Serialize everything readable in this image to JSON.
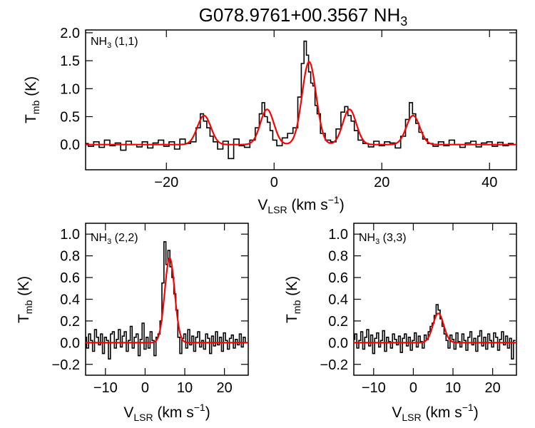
{
  "figure_title": {
    "main": "G078.9761+00.3567 NH",
    "sub": "3"
  },
  "colors": {
    "observed": "#000000",
    "fit": "#ff0000",
    "axes": "#000000"
  },
  "chart_data": [
    {
      "id": "nh3-11",
      "type": "line",
      "label": {
        "main": "NH",
        "sub": "3",
        "rest": " (1,1)"
      },
      "xlabel": {
        "main": "V",
        "sub": "LSR",
        "rest": " (km s",
        "sup": "−1",
        "end": ")"
      },
      "ylabel": {
        "main": "T",
        "sub": "mb",
        "rest": " (K)"
      },
      "xlim": [
        -35,
        45
      ],
      "ylim": [
        -0.45,
        2.05
      ],
      "xticks": [
        -20,
        0,
        20,
        40
      ],
      "xtick_labels": [
        "−20",
        "0",
        "20",
        "40"
      ],
      "yticks": [
        0.0,
        0.5,
        1.0,
        1.5,
        2.0
      ],
      "ytick_labels": [
        "0.0",
        "0.5",
        "1.0",
        "1.5",
        "2.0"
      ],
      "series": [
        {
          "role": "observed",
          "style": "steps",
          "x": [
            -35.0,
            -34.0,
            -33.0,
            -32.0,
            -31.0,
            -30.0,
            -29.0,
            -28.0,
            -27.0,
            -26.0,
            -25.0,
            -24.0,
            -23.0,
            -22.0,
            -21.0,
            -20.0,
            -19.0,
            -18.0,
            -17.0,
            -16.0,
            -15.0,
            -14.0,
            -13.4,
            -12.8,
            -12.2,
            -11.6,
            -11.0,
            -10.0,
            -9.0,
            -8.0,
            -7.0,
            -6.0,
            -5.0,
            -4.0,
            -3.0,
            -2.5,
            -2.0,
            -1.5,
            -1.0,
            -0.5,
            0.0,
            1.0,
            2.0,
            3.0,
            4.0,
            4.8,
            5.3,
            5.8,
            6.2,
            6.6,
            7.0,
            7.4,
            7.8,
            8.2,
            9.0,
            10.0,
            11.0,
            12.0,
            12.8,
            13.4,
            14.0,
            14.6,
            15.2,
            16.0,
            17.0,
            18.0,
            19.0,
            20.0,
            21.0,
            22.0,
            23.0,
            24.0,
            24.8,
            25.4,
            26.0,
            26.6,
            27.2,
            28.0,
            29.0,
            30.0,
            31.0,
            32.0,
            33.0,
            34.0,
            35.0,
            36.0,
            37.0,
            38.0,
            39.0,
            40.0,
            41.0,
            42.0,
            43.0,
            44.0
          ],
          "y": [
            0.02,
            -0.03,
            0.05,
            -0.05,
            0.08,
            -0.02,
            0.03,
            -0.1,
            0.06,
            0.0,
            -0.04,
            0.05,
            -0.06,
            0.03,
            0.08,
            -0.03,
            0.05,
            -0.08,
            0.1,
            0.02,
            0.05,
            0.3,
            0.55,
            0.42,
            0.3,
            0.15,
            0.05,
            -0.08,
            0.06,
            -0.25,
            0.1,
            -0.02,
            -0.05,
            0.08,
            0.3,
            0.55,
            0.75,
            0.5,
            0.4,
            0.25,
            0.08,
            -0.02,
            0.12,
            0.2,
            0.3,
            0.85,
            1.45,
            1.85,
            1.6,
            1.3,
            1.1,
            1.05,
            0.7,
            0.55,
            0.2,
            0.08,
            0.05,
            0.28,
            0.58,
            0.68,
            0.52,
            0.42,
            0.25,
            0.08,
            0.02,
            -0.04,
            0.06,
            -0.02,
            0.05,
            0.03,
            -0.06,
            0.15,
            0.45,
            0.75,
            0.55,
            0.38,
            0.22,
            0.1,
            0.02,
            -0.03,
            0.05,
            -0.02,
            0.08,
            0.0,
            -0.05,
            0.03,
            0.06,
            -0.04,
            0.03,
            0.05,
            -0.03,
            0.04,
            -0.02,
            0.02
          ]
        },
        {
          "role": "fit",
          "style": "gaussians",
          "components": [
            {
              "center": -13.0,
              "sigma": 1.25,
              "amplitude": 0.52
            },
            {
              "center": -1.3,
              "sigma": 1.25,
              "amplitude": 0.63
            },
            {
              "center": 6.5,
              "sigma": 1.3,
              "amplitude": 1.48
            },
            {
              "center": 14.0,
              "sigma": 1.25,
              "amplitude": 0.63
            },
            {
              "center": 25.8,
              "sigma": 1.25,
              "amplitude": 0.52
            }
          ]
        }
      ]
    },
    {
      "id": "nh3-22",
      "type": "line",
      "label": {
        "main": "NH",
        "sub": "3",
        "rest": " (2,2)"
      },
      "xlabel": {
        "main": "V",
        "sub": "LSR",
        "rest": " (km s",
        "sup": "−1",
        "end": ")"
      },
      "ylabel": {
        "main": "T",
        "sub": "mb",
        "rest": " (K)"
      },
      "xlim": [
        -15,
        26
      ],
      "ylim": [
        -0.3,
        1.1
      ],
      "xticks": [
        -10,
        0,
        10,
        20
      ],
      "xtick_labels": [
        "−10",
        "0",
        "10",
        "20"
      ],
      "yticks": [
        -0.2,
        0.0,
        0.2,
        0.4,
        0.6,
        0.8,
        1.0
      ],
      "ytick_labels": [
        "−0.2",
        "0.0",
        "0.2",
        "0.4",
        "0.6",
        "0.8",
        "1.0"
      ],
      "series": [
        {
          "role": "observed",
          "style": "steps",
          "x": [
            -15.0,
            -14.5,
            -14.0,
            -13.5,
            -13.0,
            -12.5,
            -12.0,
            -11.5,
            -11.0,
            -10.5,
            -10.0,
            -9.5,
            -9.0,
            -8.5,
            -8.0,
            -7.5,
            -7.0,
            -6.5,
            -6.0,
            -5.5,
            -5.0,
            -4.5,
            -4.0,
            -3.5,
            -3.0,
            -2.5,
            -2.0,
            -1.5,
            -1.0,
            -0.5,
            0.0,
            0.5,
            1.0,
            1.5,
            2.0,
            2.5,
            3.0,
            3.5,
            4.0,
            4.5,
            5.0,
            5.5,
            6.0,
            6.5,
            7.0,
            7.5,
            8.0,
            8.5,
            9.0,
            9.5,
            10.0,
            10.5,
            11.0,
            11.5,
            12.0,
            12.5,
            13.0,
            13.5,
            14.0,
            14.5,
            15.0,
            15.5,
            16.0,
            16.5,
            17.0,
            17.5,
            18.0,
            18.5,
            19.0,
            19.5,
            20.0,
            20.5,
            21.0,
            21.5,
            22.0,
            22.5,
            23.0,
            23.5,
            24.0,
            24.5,
            25.0,
            25.5
          ],
          "y": [
            0.05,
            -0.05,
            0.08,
            0.02,
            -0.08,
            0.12,
            0.05,
            -0.02,
            0.08,
            -0.1,
            0.05,
            0.02,
            -0.15,
            0.08,
            0.1,
            -0.05,
            0.03,
            0.12,
            -0.04,
            0.06,
            0.1,
            -0.08,
            0.02,
            0.15,
            -0.05,
            0.05,
            0.08,
            -0.12,
            0.03,
            0.18,
            -0.06,
            0.05,
            -0.05,
            0.1,
            0.02,
            -0.12,
            0.05,
            0.08,
            0.2,
            0.55,
            0.93,
            0.72,
            0.85,
            0.7,
            0.6,
            0.45,
            0.3,
            0.05,
            -0.1,
            0.04,
            0.08,
            -0.05,
            0.12,
            -0.02,
            0.06,
            -0.08,
            0.05,
            0.1,
            -0.04,
            0.02,
            -0.06,
            0.08,
            0.04,
            -0.1,
            0.06,
            -0.03,
            0.1,
            -0.02,
            0.05,
            -0.08,
            0.09,
            0.02,
            -0.06,
            0.04,
            0.07,
            -0.05,
            0.03,
            -0.02,
            0.08,
            -0.04,
            0.05,
            0.0
          ]
        },
        {
          "role": "fit",
          "style": "gaussians",
          "components": [
            {
              "center": 6.2,
              "sigma": 1.25,
              "amplitude": 0.78
            }
          ]
        }
      ]
    },
    {
      "id": "nh3-33",
      "type": "line",
      "label": {
        "main": "NH",
        "sub": "3",
        "rest": " (3,3)"
      },
      "xlabel": {
        "main": "V",
        "sub": "LSR",
        "rest": " (km s",
        "sup": "−1",
        "end": ")"
      },
      "ylabel": {
        "main": "T",
        "sub": "mb",
        "rest": " (K)"
      },
      "xlim": [
        -15,
        26
      ],
      "ylim": [
        -0.3,
        1.1
      ],
      "xticks": [
        -10,
        0,
        10,
        20
      ],
      "xtick_labels": [
        "−10",
        "0",
        "10",
        "20"
      ],
      "yticks": [
        -0.2,
        0.0,
        0.2,
        0.4,
        0.6,
        0.8,
        1.0
      ],
      "ytick_labels": [
        "−0.2",
        "0.0",
        "0.2",
        "0.4",
        "0.6",
        "0.8",
        "1.0"
      ],
      "series": [
        {
          "role": "observed",
          "style": "steps",
          "x": [
            -15.0,
            -14.5,
            -14.0,
            -13.5,
            -13.0,
            -12.5,
            -12.0,
            -11.5,
            -11.0,
            -10.5,
            -10.0,
            -9.5,
            -9.0,
            -8.5,
            -8.0,
            -7.5,
            -7.0,
            -6.5,
            -6.0,
            -5.5,
            -5.0,
            -4.5,
            -4.0,
            -3.5,
            -3.0,
            -2.5,
            -2.0,
            -1.5,
            -1.0,
            -0.5,
            0.0,
            0.5,
            1.0,
            1.5,
            2.0,
            2.5,
            3.0,
            3.5,
            4.0,
            4.5,
            5.0,
            5.5,
            6.0,
            6.5,
            7.0,
            7.5,
            8.0,
            8.5,
            9.0,
            9.5,
            10.0,
            10.5,
            11.0,
            11.5,
            12.0,
            12.5,
            13.0,
            13.5,
            14.0,
            14.5,
            15.0,
            15.5,
            16.0,
            16.5,
            17.0,
            17.5,
            18.0,
            18.5,
            19.0,
            19.5,
            20.0,
            20.5,
            21.0,
            21.5,
            22.0,
            22.5,
            23.0,
            23.5,
            24.0,
            24.5,
            25.0,
            25.5
          ],
          "y": [
            0.03,
            0.08,
            -0.05,
            0.02,
            0.1,
            -0.06,
            0.05,
            0.12,
            -0.03,
            0.07,
            -0.1,
            0.04,
            0.09,
            -0.04,
            0.02,
            0.11,
            -0.08,
            0.05,
            0.01,
            -0.05,
            0.08,
            0.03,
            -0.02,
            0.06,
            -0.09,
            0.04,
            0.08,
            -0.03,
            0.05,
            -0.07,
            0.02,
            0.09,
            -0.04,
            0.06,
            0.01,
            -0.05,
            0.07,
            0.03,
            0.1,
            0.15,
            0.18,
            0.25,
            0.35,
            0.3,
            0.22,
            0.15,
            0.08,
            0.02,
            -0.05,
            0.07,
            0.03,
            -0.06,
            0.09,
            0.01,
            -0.04,
            0.08,
            0.02,
            -0.07,
            0.05,
            0.1,
            -0.02,
            0.04,
            -0.08,
            0.06,
            0.11,
            -0.03,
            0.05,
            -0.06,
            0.08,
            0.02,
            -0.04,
            0.09,
            0.05,
            -0.07,
            0.03,
            0.1,
            -0.02,
            0.06,
            -0.05,
            0.04,
            -0.15,
            0.02
          ]
        },
        {
          "role": "fit",
          "style": "gaussians",
          "components": [
            {
              "center": 6.3,
              "sigma": 1.35,
              "amplitude": 0.27
            }
          ]
        }
      ]
    }
  ]
}
